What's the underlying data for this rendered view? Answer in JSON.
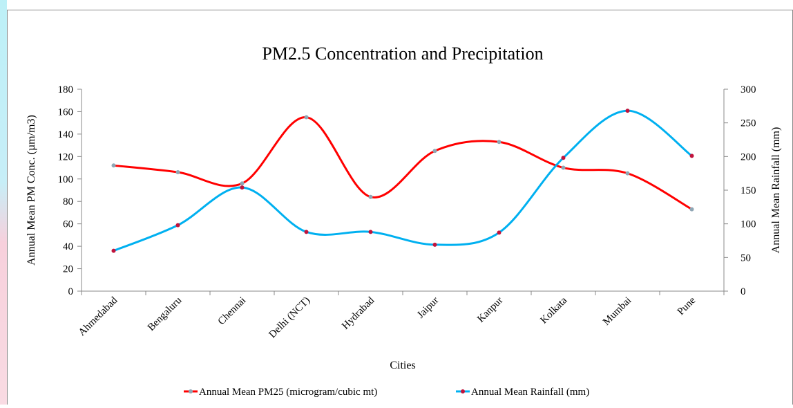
{
  "chart_data": {
    "type": "line",
    "title": "PM2.5 Concentration and Precipitation",
    "x_label": "Cities",
    "y_label": "Annual Mean PM Conc. (µm/m3)",
    "y2_label": "Annual Mean Rainfall (mm)",
    "categories": [
      "Ahmedabad",
      "Bengaluru",
      "Chennai",
      "Delhi (NCT)",
      "Hydrabad",
      "Jaipur",
      "Kanpur",
      "Kolkata",
      "Mumbai",
      "Pune"
    ],
    "series": [
      {
        "name": "Annual Mean PM25 (microgram/cubic mt)",
        "color": "#ff0000",
        "marker_color": "#8fa6b4",
        "values": [
          112,
          106,
          96,
          155,
          84,
          125,
          133,
          110,
          105,
          73
        ]
      },
      {
        "name": "Annual Mean Rainfall (mm)",
        "color": "#00b0f0",
        "marker_color": "#c0143c",
        "axis": "y2",
        "values": [
          60,
          98,
          154,
          88,
          88,
          69,
          87,
          198,
          268,
          201
        ]
      }
    ],
    "ylim": [
      0,
      180
    ],
    "yticks": [
      0,
      20,
      40,
      60,
      80,
      100,
      120,
      140,
      160,
      180
    ],
    "y2lim": [
      0,
      300
    ],
    "y2ticks": [
      0,
      50,
      100,
      150,
      200,
      250,
      300
    ],
    "smooth": true,
    "legend": "bottom"
  }
}
